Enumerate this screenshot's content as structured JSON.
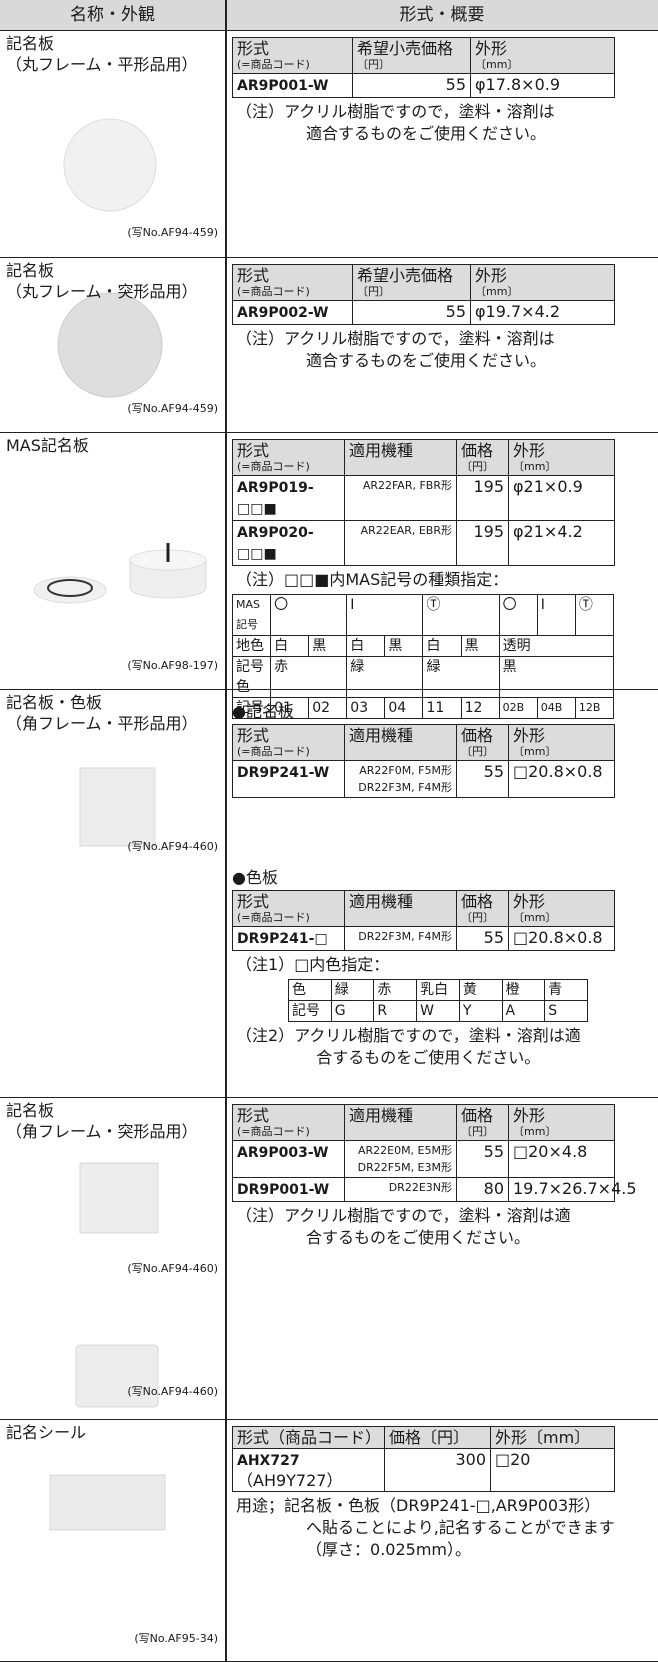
{
  "header": {
    "left": "名称・外観",
    "right": "形式・概要"
  },
  "rows": [
    {
      "name": "記名板",
      "subname": "（丸フレーム・平形品用）",
      "photo_captions": [
        "(写No.AF94-459)"
      ],
      "blocks": [
        {
          "table": {
            "headers": [
              [
                "形式",
                "(=商品コード)"
              ],
              [
                "希望小売価格",
                "〔円〕"
              ],
              [
                "外形",
                "〔mm〕"
              ]
            ],
            "rows": [
              [
                [
                  "AR9P001-W"
                ],
                [
                  "55"
                ],
                [
                  "φ17.8×0.9"
                ]
              ]
            ]
          }
        },
        {
          "note": {
            "label": "（注）",
            "lines": [
              "アクリル樹脂ですので，塗料・溶剤は",
              "適合するものをご使用ください。"
            ]
          }
        }
      ]
    },
    {
      "name": "記名板",
      "subname": "（丸フレーム・突形品用）",
      "photo_captions": [
        "(写No.AF94-459)"
      ],
      "blocks": [
        {
          "table": {
            "headers": [
              [
                "形式",
                "(=商品コード)"
              ],
              [
                "希望小売価格",
                "〔円〕"
              ],
              [
                "外形",
                "〔mm〕"
              ]
            ],
            "rows": [
              [
                [
                  "AR9P002-W"
                ],
                [
                  "55"
                ],
                [
                  "φ19.7×4.2"
                ]
              ]
            ]
          }
        },
        {
          "note": {
            "label": "（注）",
            "lines": [
              "アクリル樹脂ですので，塗料・溶剤は",
              "適合するものをご使用ください。"
            ]
          }
        }
      ]
    },
    {
      "name": "MAS記名板",
      "photo_captions": [
        "(写No.AF98-197)"
      ],
      "blocks": [
        {
          "table": {
            "headers": [
              [
                "形式",
                "(=商品コード)"
              ],
              [
                "適用機種"
              ],
              [
                "価格",
                "〔円〕"
              ],
              [
                "外形",
                "〔mm〕"
              ]
            ],
            "rows": [
              [
                [
                  "AR9P019-□□■"
                ],
                [
                  "AR22FAR, FBR形"
                ],
                [
                  "195"
                ],
                [
                  "φ21×0.9"
                ]
              ],
              [
                [
                  "AR9P020-□□■"
                ],
                [
                  "AR22EAR, EBR形"
                ],
                [
                  "195"
                ],
                [
                  "φ21×4.2"
                ]
              ]
            ]
          }
        },
        {
          "note": {
            "label": "（注）",
            "lines": [
              "□□■内MAS記号の種類指定："
            ]
          }
        },
        {
          "grid": [
            [
              "MAS記号",
              "〇",
              "I",
              "Ⓣ",
              "〇",
              "I",
              "Ⓣ"
            ],
            [
              "地色",
              "白",
              "黒",
              "白",
              "黒",
              "白",
              "黒",
              "透明"
            ],
            [
              "記号色",
              "赤",
              "緑",
              "緑",
              "黒"
            ],
            [
              "記号",
              "01",
              "02",
              "03",
              "04",
              "11",
              "12",
              "02B",
              "04B",
              "12B"
            ]
          ]
        }
      ]
    },
    {
      "name": "記名板・色板",
      "subname": "（角フレーム・平形品用）",
      "photo_captions": [
        "(写No.AF94-460)"
      ],
      "blocks": [
        {
          "heading": "●記名板"
        },
        {
          "table": {
            "headers": [
              [
                "形式",
                "(=商品コード)"
              ],
              [
                "適用機種"
              ],
              [
                "価格",
                "〔円〕"
              ],
              [
                "外形",
                "〔mm〕"
              ]
            ],
            "rows": [
              [
                [
                  "DR9P241-W"
                ],
                [
                  "AR22F0M, F5M形",
                  "DR22F3M, F4M形"
                ],
                [
                  "55"
                ],
                [
                  "□20.8×0.8"
                ]
              ]
            ]
          }
        },
        {
          "heading": "●色板"
        },
        {
          "table": {
            "headers": [
              [
                "形式",
                "(=商品コード)"
              ],
              [
                "適用機種"
              ],
              [
                "価格",
                "〔円〕"
              ],
              [
                "外形",
                "〔mm〕"
              ]
            ],
            "rows": [
              [
                [
                  "DR9P241-□"
                ],
                [
                  "DR22F3M, F4M形"
                ],
                [
                  "55"
                ],
                [
                  "□20.8×0.8"
                ]
              ]
            ]
          }
        },
        {
          "note": {
            "label": "（注1）",
            "lines": [
              "□内色指定："
            ]
          }
        },
        {
          "grid": [
            [
              "色",
              "緑",
              "赤",
              "乳白",
              "黄",
              "橙",
              "青"
            ],
            [
              "記号",
              "G",
              "R",
              "W",
              "Y",
              "A",
              "S"
            ]
          ]
        },
        {
          "note": {
            "label": "（注2）",
            "lines": [
              "アクリル樹脂ですので，塗料・溶剤は適",
              "合するものをご使用ください。"
            ]
          }
        }
      ]
    },
    {
      "name": "記名板",
      "subname": "（角フレーム・突形品用）",
      "photo_captions": [
        "(写No.AF94-460)",
        "(写No.AF94-460)"
      ],
      "blocks": [
        {
          "table": {
            "headers": [
              [
                "形式",
                "(=商品コード)"
              ],
              [
                "適用機種"
              ],
              [
                "価格",
                "〔円〕"
              ],
              [
                "外形",
                "〔mm〕"
              ]
            ],
            "rows": [
              [
                [
                  "AR9P003-W"
                ],
                [
                  "AR22E0M, E5M形",
                  "DR22F5M, E3M形"
                ],
                [
                  "55"
                ],
                [
                  "□20×4.8"
                ]
              ],
              [
                [
                  "DR9P001-W"
                ],
                [
                  "DR22E3N形"
                ],
                [
                  "80"
                ],
                [
                  "19.7×26.7×4.5"
                ]
              ]
            ]
          }
        },
        {
          "note": {
            "label": "（注）",
            "lines": [
              "アクリル樹脂ですので，塗料・溶剤は適",
              "合するものをご使用ください。"
            ]
          }
        }
      ]
    },
    {
      "name": "記名シール",
      "photo_captions": [
        "(写No.AF95-34)"
      ],
      "blocks": [
        {
          "table": {
            "headers": [
              [
                "形式（商品コード）"
              ],
              [
                "価格〔円〕"
              ],
              [
                "外形〔mm〕"
              ]
            ],
            "rows": [
              [
                [
                  "AHX727",
                  "（AH9Y727）"
                ],
                [
                  "300"
                ],
                [
                  "□20"
                ]
              ]
            ]
          }
        },
        {
          "note": {
            "label": "用途；",
            "lines": [
              "記名板・色板（DR9P241-□,AR9P003形）",
              "へ貼ることにより,記名することができます",
              "（厚さ：0.025mm）。"
            ]
          }
        }
      ]
    }
  ]
}
